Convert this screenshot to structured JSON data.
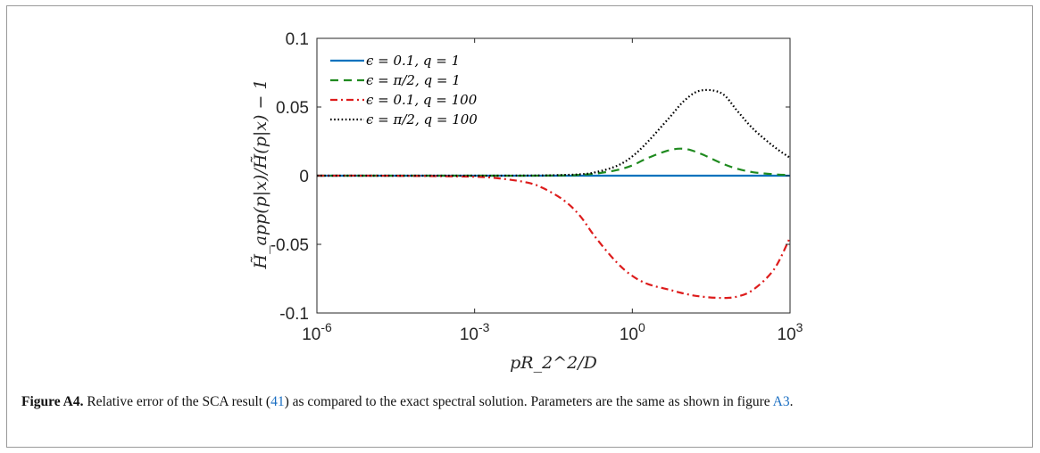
{
  "chart_data": {
    "type": "line",
    "title": "",
    "xlabel": "pR_2^2/D",
    "ylabel": "H̃_app(p|x)/H̃(p|x) − 1",
    "xscale": "log",
    "xlim": [
      1e-06,
      1000.0
    ],
    "ylim": [
      -0.1,
      0.1
    ],
    "xticks": [
      1e-06,
      0.001,
      1.0,
      1000.0
    ],
    "xtick_labels": [
      {
        "base": "10",
        "exp": "-6"
      },
      {
        "base": "10",
        "exp": "-3"
      },
      {
        "base": "10",
        "exp": "0"
      },
      {
        "base": "10",
        "exp": "3"
      }
    ],
    "yticks": [
      -0.1,
      -0.05,
      0,
      0.05,
      0.1
    ],
    "ytick_labels": [
      "-0.1",
      "-0.05",
      "0",
      "0.05",
      "0.1"
    ],
    "grid": false,
    "legend_position": "top-left",
    "series": [
      {
        "name": "ϵ = 0.1, q = 1",
        "color": "#0072BD",
        "style": "solid",
        "x": [
          1e-06,
          0.0001,
          0.01,
          1.0,
          100.0,
          1000.0
        ],
        "y": [
          0,
          0,
          0,
          0,
          0,
          0
        ]
      },
      {
        "name": "ϵ = π/2, q = 1",
        "color": "#1f8a1f",
        "style": "dashed",
        "x": [
          1e-06,
          0.001,
          0.01,
          0.05,
          0.1,
          0.2,
          0.5,
          1,
          2,
          5,
          10,
          20,
          50,
          100,
          200,
          500,
          1000
        ],
        "y": [
          0,
          0,
          0,
          0.0002,
          0.0006,
          0.0015,
          0.004,
          0.0075,
          0.013,
          0.0185,
          0.0195,
          0.016,
          0.009,
          0.005,
          0.0025,
          0.001,
          0.0005
        ]
      },
      {
        "name": "ϵ = 0.1, q = 100",
        "color": "#dd1c1c",
        "style": "dashdot",
        "x": [
          1e-06,
          1e-05,
          0.0001,
          0.001,
          0.003,
          0.01,
          0.02,
          0.05,
          0.1,
          0.2,
          0.5,
          1,
          2,
          5,
          10,
          20,
          50,
          100,
          200,
          500,
          1000
        ],
        "y": [
          0,
          0,
          -0.0002,
          -0.0008,
          -0.002,
          -0.005,
          -0.009,
          -0.018,
          -0.029,
          -0.045,
          -0.063,
          -0.073,
          -0.079,
          -0.083,
          -0.086,
          -0.088,
          -0.089,
          -0.088,
          -0.083,
          -0.068,
          -0.045
        ]
      },
      {
        "name": "ϵ = π/2, q = 100",
        "color": "#000000",
        "style": "dotted",
        "x": [
          1e-06,
          0.001,
          0.01,
          0.03,
          0.1,
          0.2,
          0.5,
          1,
          2,
          5,
          10,
          20,
          50,
          100,
          200,
          500,
          1000
        ],
        "y": [
          0,
          0,
          0.0001,
          0.0003,
          0.001,
          0.0025,
          0.007,
          0.014,
          0.025,
          0.042,
          0.055,
          0.062,
          0.06,
          0.047,
          0.034,
          0.021,
          0.013
        ]
      }
    ]
  },
  "caption": {
    "label": "Figure A4.",
    "text_before_ref1": "Relative error of the SCA result (",
    "ref1": "41",
    "text_between": ") as compared to the exact spectral solution. Parameters are the same as shown in figure ",
    "ref2": "A3",
    "text_after": "."
  }
}
